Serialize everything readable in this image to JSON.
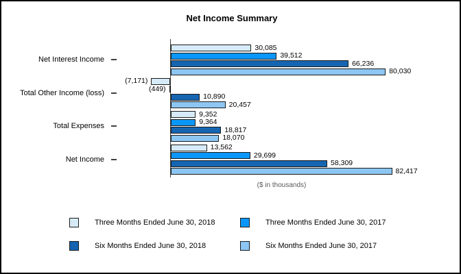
{
  "chart_data": {
    "type": "bar",
    "orientation": "horizontal",
    "title": "Net Income Summary",
    "xlabel": "($ in thousands)",
    "categories": [
      "Net Interest Income",
      "Total Other Income (loss)",
      "Total Expenses",
      "Net Income"
    ],
    "series": [
      {
        "name": "Three Months Ended June 30, 2018",
        "color": "#D6EBF7",
        "values": [
          30085,
          -7171,
          9352,
          13562
        ],
        "labels": [
          "30,085",
          "(7,171)",
          "9,352",
          "13,562"
        ]
      },
      {
        "name": "Three Months Ended June 30, 2017",
        "color": "#0B97F9",
        "values": [
          39512,
          -449,
          9364,
          29699
        ],
        "labels": [
          "39,512",
          "(449)",
          "9,364",
          "29,699"
        ]
      },
      {
        "name": "Six Months Ended June 30, 2018",
        "color": "#1565B1",
        "values": [
          66236,
          10890,
          18817,
          58309
        ],
        "labels": [
          "66,236",
          "10,890",
          "18,817",
          "58,309"
        ]
      },
      {
        "name": "Six Months Ended June 30, 2017",
        "color": "#8DC6F2",
        "values": [
          80030,
          20457,
          18070,
          82417
        ],
        "labels": [
          "80,030",
          "20,457",
          "18,070",
          "82,417"
        ]
      }
    ],
    "axis_max": 82417,
    "grid": false,
    "legend_position": "bottom"
  },
  "colors": {
    "bar_border": "#1a1a1a",
    "axis_line": "#404040",
    "note_text": "#595959"
  }
}
